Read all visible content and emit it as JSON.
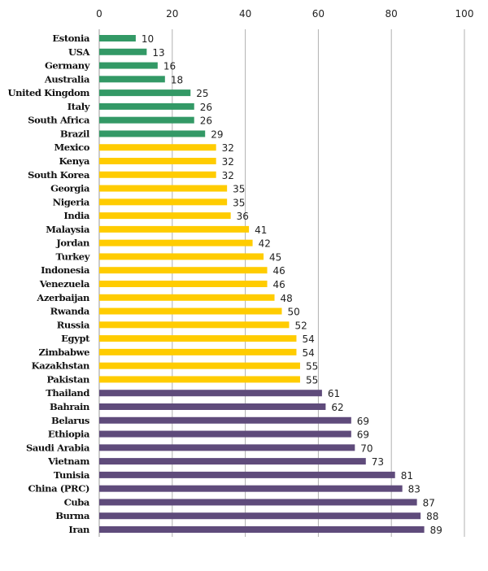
{
  "chart_data": {
    "type": "bar",
    "orientation": "horizontal",
    "title": "",
    "xlabel": "",
    "ylabel": "",
    "xlim": [
      0,
      100
    ],
    "xticks": [
      "0",
      "20",
      "40",
      "60",
      "80",
      "100"
    ],
    "xtick_values": [
      0,
      20,
      40,
      60,
      80,
      100
    ],
    "grid": true,
    "axis_position": "top",
    "categories": [
      "Estonia",
      "USA",
      "Germany",
      "Australia",
      "United Kingdom",
      "Italy",
      "South Africa",
      "Brazil",
      "Mexico",
      "Kenya",
      "South Korea",
      "Georgia",
      "Nigeria",
      "India",
      "Malaysia",
      "Jordan",
      "Turkey",
      "Indonesia",
      "Venezuela",
      "Azerbaijan",
      "Rwanda",
      "Russia",
      "Egypt",
      "Zimbabwe",
      "Kazakhstan",
      "Pakistan",
      "Thailand",
      "Bahrain",
      "Belarus",
      "Ethiopia",
      "Saudi Arabia",
      "Vietnam",
      "Tunisia",
      "China (PRC)",
      "Cuba",
      "Burma",
      "Iran"
    ],
    "values": [
      10,
      13,
      16,
      18,
      25,
      26,
      26,
      29,
      32,
      32,
      32,
      35,
      35,
      36,
      41,
      42,
      45,
      46,
      46,
      48,
      50,
      52,
      54,
      54,
      55,
      55,
      61,
      62,
      69,
      69,
      70,
      73,
      81,
      83,
      87,
      88,
      89
    ],
    "value_labels": [
      "10",
      "13",
      "16",
      "18",
      "25",
      "26",
      "26",
      "29",
      "32",
      "32",
      "32",
      "35",
      "35",
      "36",
      "41",
      "42",
      "45",
      "46",
      "46",
      "48",
      "50",
      "52",
      "54",
      "54",
      "55",
      "55",
      "61",
      "62",
      "69",
      "69",
      "70",
      "73",
      "81",
      "83",
      "87",
      "88",
      "89"
    ],
    "color_groups": [
      {
        "range": [
          0,
          30
        ],
        "color": "#339966"
      },
      {
        "range": [
          31,
          60
        ],
        "color": "#ffcc00"
      },
      {
        "range": [
          61,
          100
        ],
        "color": "#5f4b7b"
      }
    ]
  }
}
